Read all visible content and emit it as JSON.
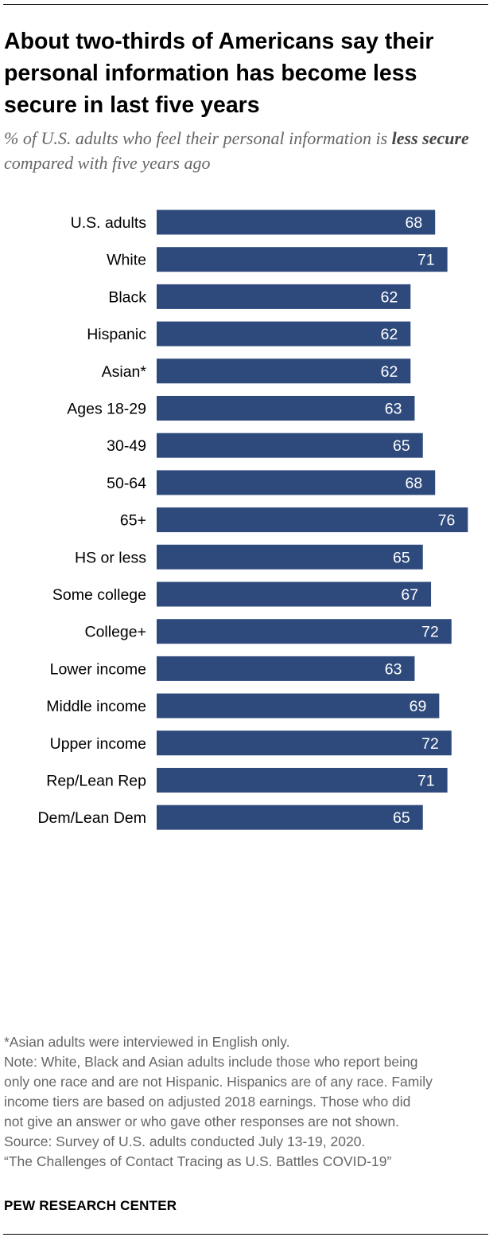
{
  "title": "About two-thirds of Americans say their personal information has become less secure in last five years",
  "subtitle": {
    "before": "% of U.S. adults who feel their personal information is",
    "emphasis": "less secure",
    "after": "compared with five years ago"
  },
  "colors": {
    "bar": "#2e4a7c",
    "bar_label": "#ffffff",
    "category_label": "#000000"
  },
  "chart_data": {
    "type": "bar",
    "orientation": "horizontal",
    "xlim": [
      0,
      100
    ],
    "title": "About two-thirds of Americans say their personal information has become less secure in last five years",
    "categories": [
      "U.S. adults",
      "White",
      "Black",
      "Hispanic",
      "Asian*",
      "Ages 18-29",
      "30-49",
      "50-64",
      "65+",
      "HS or less",
      "Some college",
      "College+",
      "Lower income",
      "Middle income",
      "Upper income",
      "Rep/Lean Rep",
      "Dem/Lean Dem"
    ],
    "values": [
      68,
      71,
      62,
      62,
      62,
      63,
      65,
      68,
      76,
      65,
      67,
      72,
      63,
      69,
      72,
      71,
      65
    ],
    "groups": [
      [
        "U.S. adults"
      ],
      [
        "White",
        "Black",
        "Hispanic",
        "Asian*"
      ],
      [
        "Ages 18-29",
        "30-49",
        "50-64",
        "65+"
      ],
      [
        "HS or less",
        "Some college",
        "College+"
      ],
      [
        "Lower income",
        "Middle income",
        "Upper income"
      ],
      [
        "Rep/Lean Rep",
        "Dem/Lean Dem"
      ]
    ]
  },
  "notes": [
    "*Asian adults were interviewed in English only.",
    "Note: White, Black and Asian adults include those who report being",
    "only one race and are not Hispanic. Hispanics are of any race. Family",
    "income tiers are based on adjusted 2018 earnings. Those who did",
    "not give an answer or who gave other responses are not shown.",
    "Source: Survey of U.S. adults conducted July 13-19, 2020.",
    "“The Challenges of Contact Tracing as U.S. Battles COVID-19”"
  ],
  "brand": "PEW RESEARCH CENTER"
}
